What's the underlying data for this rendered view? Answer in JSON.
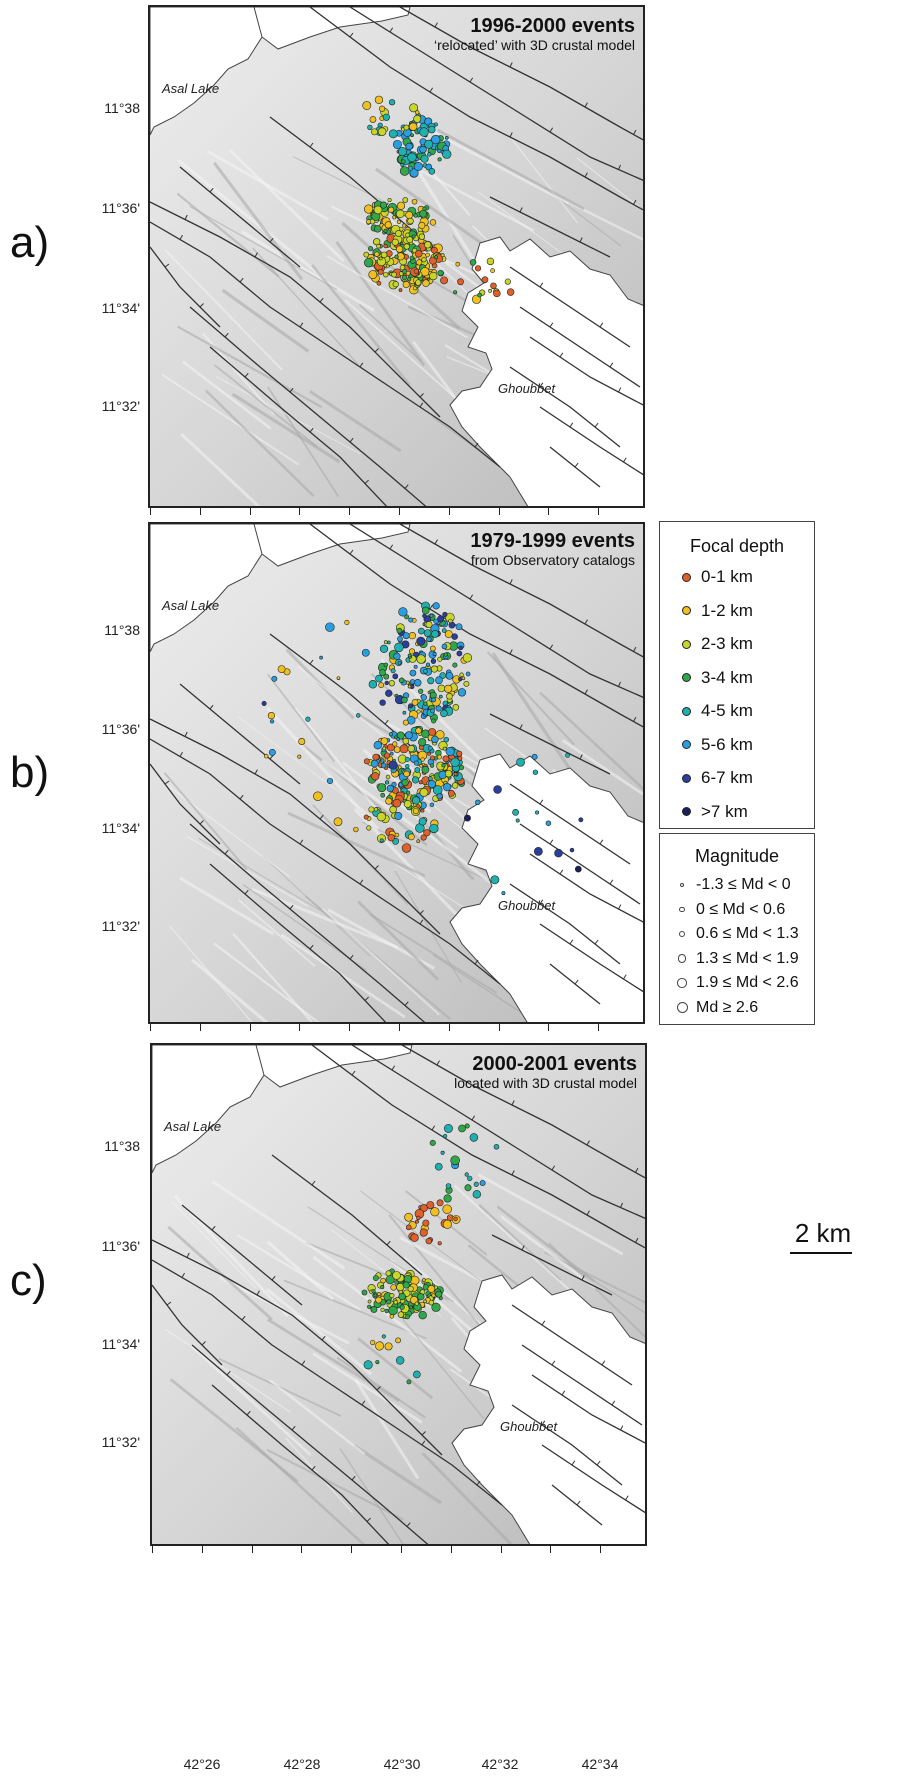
{
  "panels": [
    {
      "letter": "a)",
      "title": "1996-2000 events",
      "subtitle": "‘relocated’ with 3D crustal model"
    },
    {
      "letter": "b)",
      "title": "1979-1999 events",
      "subtitle": "from Observatory catalogs"
    },
    {
      "letter": "c)",
      "title": "2000-2001 events",
      "subtitle": "located with 3D crustal model"
    }
  ],
  "places": {
    "lake": "Asal Lake",
    "bay": "Ghoubbet"
  },
  "latitude_labels": [
    "11°38",
    "11°36'",
    "11°34'",
    "11°32'"
  ],
  "longitude_labels": [
    "42°26",
    "42°28",
    "42°30",
    "42°32",
    "42°34"
  ],
  "legend_depth": {
    "title": "Focal depth",
    "items": [
      {
        "label": "0-1 km",
        "color": "#e0602a"
      },
      {
        "label": "1-2 km",
        "color": "#f0c020"
      },
      {
        "label": "2-3 km",
        "color": "#c8d62a"
      },
      {
        "label": "3-4 km",
        "color": "#2fa84a"
      },
      {
        "label": "4-5 km",
        "color": "#1fb0b0"
      },
      {
        "label": "5-6 km",
        "color": "#2a9ee0"
      },
      {
        "label": "6-7 km",
        "color": "#2a3f9c"
      },
      {
        "label": ">7 km",
        "color": "#1a1f5c"
      }
    ]
  },
  "legend_magnitude": {
    "title": "Magnitude",
    "items": [
      {
        "label": "-1.3 ≤ Md < 0"
      },
      {
        "label": "0 ≤ Md < 0.6"
      },
      {
        "label": "0.6 ≤ Md < 1.3"
      },
      {
        "label": "1.3 ≤ Md < 1.9"
      },
      {
        "label": "1.9 ≤ Md < 2.6"
      },
      {
        "label": "Md ≥ 2.6"
      }
    ]
  },
  "scale": {
    "label": "2 km"
  }
}
